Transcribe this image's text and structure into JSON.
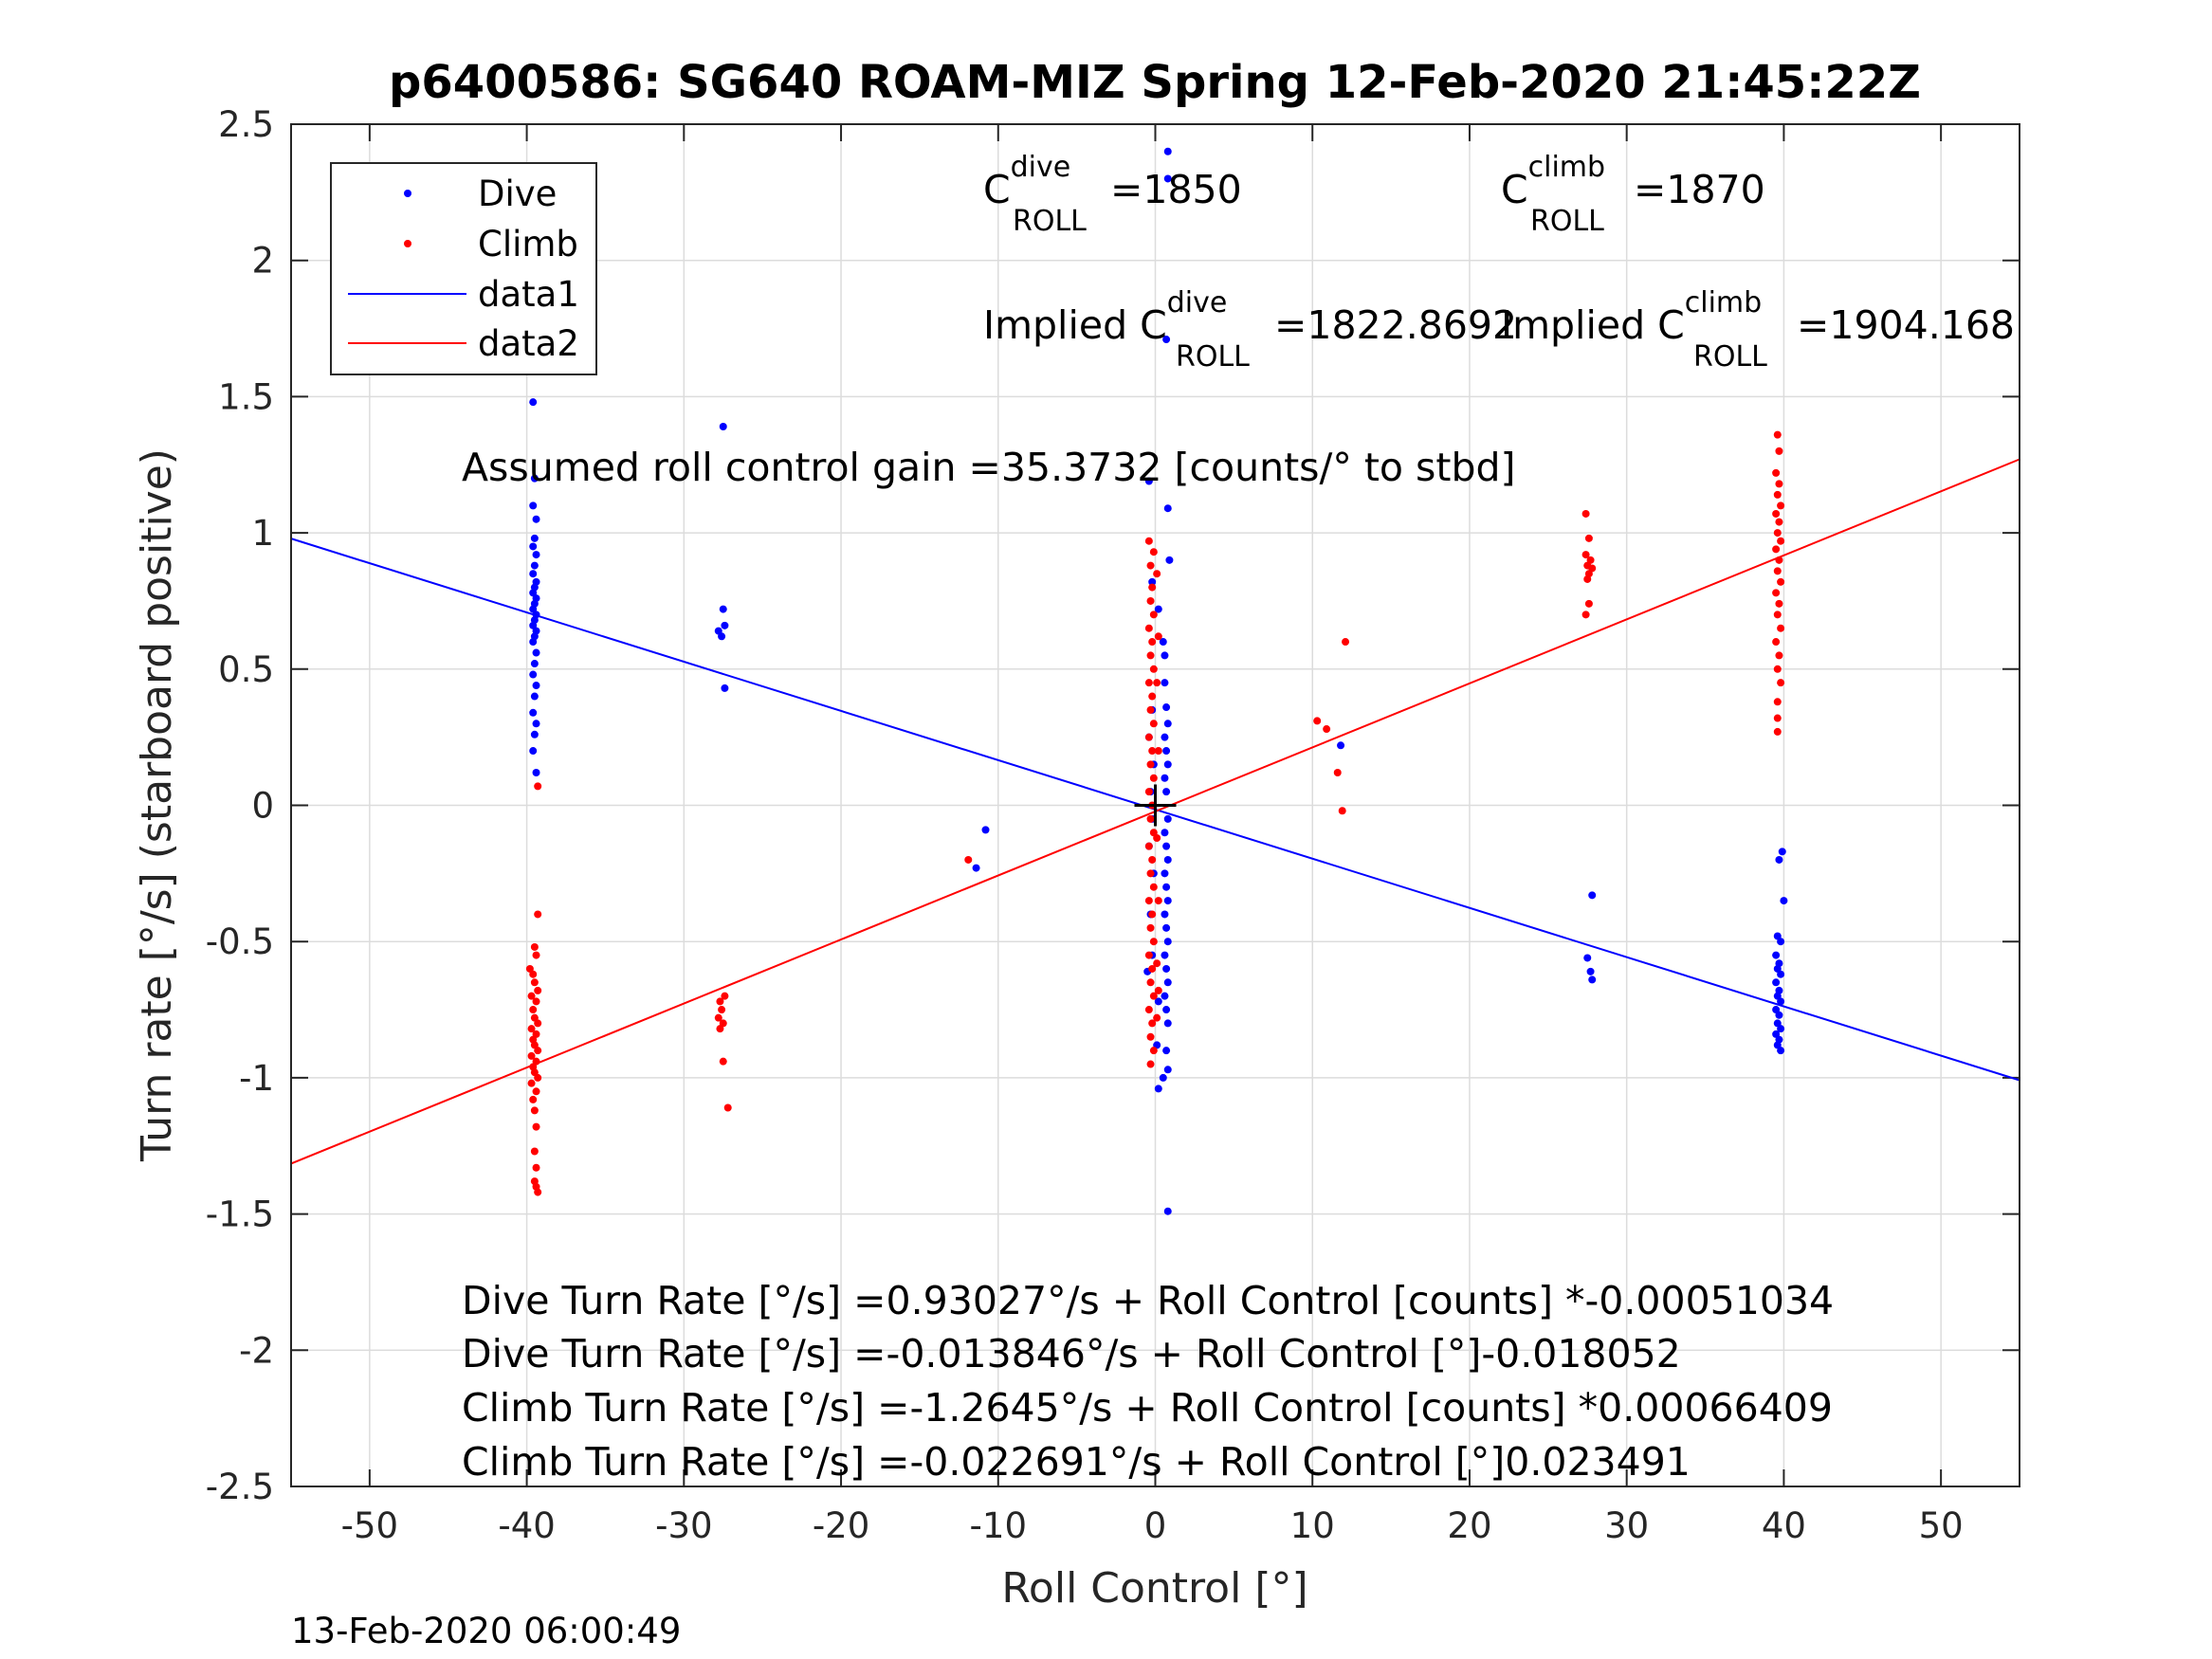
{
  "chart_data": {
    "type": "scatter",
    "title": "p6400586: SG640 ROAM-MIZ Spring 12-Feb-2020 21:45:22Z",
    "xlabel": "Roll Control [°]",
    "ylabel": "Turn rate [°/s] (starboard positive)",
    "xlim": [
      -55,
      55
    ],
    "ylim": [
      -2.5,
      2.5
    ],
    "xticks": [
      -50,
      -40,
      -30,
      -20,
      -10,
      0,
      10,
      20,
      30,
      40,
      50
    ],
    "xtick_labels": [
      "-50",
      "-40",
      "-30",
      "-20",
      "-10",
      "0",
      "10",
      "20",
      "30",
      "40",
      "50"
    ],
    "yticks": [
      -2.5,
      -2,
      -1.5,
      -1,
      -0.5,
      0,
      0.5,
      1,
      1.5,
      2,
      2.5
    ],
    "ytick_labels": [
      "-2.5",
      "-2",
      "-1.5",
      "-1",
      "-0.5",
      "0",
      "0.5",
      "1",
      "1.5",
      "2",
      "2.5"
    ],
    "grid": true,
    "legend_placement": "top-left",
    "legend": [
      {
        "name": "Dive",
        "style": "dot",
        "color": "#0000ff"
      },
      {
        "name": "Climb",
        "style": "dot",
        "color": "#ff0000"
      },
      {
        "name": "data1",
        "style": "line",
        "color": "#0000ff"
      },
      {
        "name": "data2",
        "style": "line",
        "color": "#ff0000"
      }
    ],
    "series": [
      {
        "name": "Dive",
        "kind": "scatter",
        "color": "#0000ff",
        "points": [
          [
            -39.6,
            1.48
          ],
          [
            -39.5,
            1.2
          ],
          [
            -39.6,
            1.1
          ],
          [
            -39.4,
            1.05
          ],
          [
            -39.5,
            0.98
          ],
          [
            -39.6,
            0.95
          ],
          [
            -39.4,
            0.92
          ],
          [
            -39.5,
            0.88
          ],
          [
            -39.6,
            0.85
          ],
          [
            -39.4,
            0.82
          ],
          [
            -39.5,
            0.8
          ],
          [
            -39.6,
            0.78
          ],
          [
            -39.4,
            0.76
          ],
          [
            -39.5,
            0.74
          ],
          [
            -39.6,
            0.72
          ],
          [
            -39.4,
            0.7
          ],
          [
            -39.5,
            0.68
          ],
          [
            -39.6,
            0.66
          ],
          [
            -39.4,
            0.64
          ],
          [
            -39.5,
            0.62
          ],
          [
            -39.6,
            0.6
          ],
          [
            -39.4,
            0.56
          ],
          [
            -39.5,
            0.52
          ],
          [
            -39.6,
            0.48
          ],
          [
            -39.4,
            0.44
          ],
          [
            -39.5,
            0.4
          ],
          [
            -39.6,
            0.34
          ],
          [
            -39.4,
            0.3
          ],
          [
            -39.5,
            0.26
          ],
          [
            -39.6,
            0.2
          ],
          [
            -39.4,
            0.12
          ],
          [
            -27.8,
            0.64
          ],
          [
            -27.6,
            0.62
          ],
          [
            -27.4,
            0.66
          ],
          [
            -27.5,
            0.72
          ],
          [
            -27.5,
            1.39
          ],
          [
            -27.4,
            0.43
          ],
          [
            -10.8,
            -0.09
          ],
          [
            -11.4,
            -0.23
          ],
          [
            -0.4,
            1.19
          ],
          [
            -0.2,
            0.82
          ],
          [
            0.2,
            0.72
          ],
          [
            0.5,
            0.6
          ],
          [
            0.6,
            0.55
          ],
          [
            0.8,
            1.09
          ],
          [
            0.9,
            0.9
          ],
          [
            0.8,
            2.3
          ],
          [
            0.8,
            2.4
          ],
          [
            0.7,
            1.71
          ],
          [
            0.6,
            0.45
          ],
          [
            0.7,
            0.36
          ],
          [
            0.8,
            0.3
          ],
          [
            0.6,
            0.25
          ],
          [
            0.7,
            0.2
          ],
          [
            0.8,
            0.15
          ],
          [
            0.6,
            0.1
          ],
          [
            0.7,
            0.05
          ],
          [
            0.8,
            -0.05
          ],
          [
            0.6,
            -0.1
          ],
          [
            0.7,
            -0.15
          ],
          [
            0.8,
            -0.2
          ],
          [
            0.6,
            -0.25
          ],
          [
            0.7,
            -0.3
          ],
          [
            0.8,
            -0.35
          ],
          [
            0.6,
            -0.4
          ],
          [
            0.7,
            -0.45
          ],
          [
            0.8,
            -0.5
          ],
          [
            0.6,
            -0.55
          ],
          [
            0.7,
            -0.6
          ],
          [
            0.8,
            -0.65
          ],
          [
            0.6,
            -0.7
          ],
          [
            0.7,
            -0.75
          ],
          [
            0.8,
            -0.8
          ],
          [
            0.7,
            -0.9
          ],
          [
            0.8,
            -0.97
          ],
          [
            0.5,
            -1.0
          ],
          [
            0.2,
            -1.04
          ],
          [
            -0.5,
            -0.61
          ],
          [
            -0.2,
            -0.55
          ],
          [
            -0.3,
            -0.4
          ],
          [
            -0.1,
            -0.25
          ],
          [
            -0.4,
            -0.15
          ],
          [
            -0.2,
            -0.05
          ],
          [
            -0.3,
            0.05
          ],
          [
            -0.1,
            0.15
          ],
          [
            -0.4,
            0.25
          ],
          [
            -0.2,
            0.35
          ],
          [
            0.2,
            -0.72
          ],
          [
            0.1,
            -0.88
          ],
          [
            0.8,
            -1.49
          ],
          [
            11.8,
            0.22
          ],
          [
            27.8,
            -0.33
          ],
          [
            27.5,
            -0.56
          ],
          [
            27.7,
            -0.61
          ],
          [
            27.8,
            -0.64
          ],
          [
            39.9,
            -0.17
          ],
          [
            39.7,
            -0.2
          ],
          [
            40.0,
            -0.35
          ],
          [
            39.6,
            -0.48
          ],
          [
            39.8,
            -0.5
          ],
          [
            39.5,
            -0.55
          ],
          [
            39.7,
            -0.58
          ],
          [
            39.6,
            -0.6
          ],
          [
            39.8,
            -0.62
          ],
          [
            39.5,
            -0.65
          ],
          [
            39.7,
            -0.68
          ],
          [
            39.6,
            -0.7
          ],
          [
            39.8,
            -0.72
          ],
          [
            39.5,
            -0.75
          ],
          [
            39.7,
            -0.77
          ],
          [
            39.6,
            -0.8
          ],
          [
            39.8,
            -0.82
          ],
          [
            39.5,
            -0.84
          ],
          [
            39.7,
            -0.86
          ],
          [
            39.6,
            -0.88
          ],
          [
            39.8,
            -0.9
          ]
        ]
      },
      {
        "name": "Climb",
        "kind": "scatter",
        "color": "#ff0000",
        "points": [
          [
            -39.3,
            0.07
          ],
          [
            -39.3,
            -0.4
          ],
          [
            -39.5,
            -0.52
          ],
          [
            -39.4,
            -0.55
          ],
          [
            -39.8,
            -0.6
          ],
          [
            -39.6,
            -0.62
          ],
          [
            -39.5,
            -0.65
          ],
          [
            -39.3,
            -0.68
          ],
          [
            -39.7,
            -0.7
          ],
          [
            -39.4,
            -0.72
          ],
          [
            -39.6,
            -0.75
          ],
          [
            -39.5,
            -0.78
          ],
          [
            -39.3,
            -0.8
          ],
          [
            -39.7,
            -0.82
          ],
          [
            -39.4,
            -0.84
          ],
          [
            -39.6,
            -0.86
          ],
          [
            -39.5,
            -0.88
          ],
          [
            -39.3,
            -0.9
          ],
          [
            -39.7,
            -0.92
          ],
          [
            -39.4,
            -0.94
          ],
          [
            -39.6,
            -0.96
          ],
          [
            -39.5,
            -0.98
          ],
          [
            -39.3,
            -1.0
          ],
          [
            -39.7,
            -1.02
          ],
          [
            -39.4,
            -1.05
          ],
          [
            -39.6,
            -1.08
          ],
          [
            -39.5,
            -1.12
          ],
          [
            -39.4,
            -1.18
          ],
          [
            -39.5,
            -1.27
          ],
          [
            -39.4,
            -1.33
          ],
          [
            -39.5,
            -1.38
          ],
          [
            -39.4,
            -1.4
          ],
          [
            -39.3,
            -1.42
          ],
          [
            -27.7,
            -0.72
          ],
          [
            -27.6,
            -0.75
          ],
          [
            -27.8,
            -0.78
          ],
          [
            -27.5,
            -0.8
          ],
          [
            -27.7,
            -0.82
          ],
          [
            -27.4,
            -0.7
          ],
          [
            -27.5,
            -0.94
          ],
          [
            -27.2,
            -1.11
          ],
          [
            -11.9,
            -0.2
          ],
          [
            -0.4,
            0.97
          ],
          [
            -0.1,
            0.93
          ],
          [
            -0.3,
            0.88
          ],
          [
            -0.2,
            0.8
          ],
          [
            -0.3,
            0.75
          ],
          [
            -0.1,
            0.7
          ],
          [
            -0.4,
            0.65
          ],
          [
            -0.2,
            0.6
          ],
          [
            -0.3,
            0.55
          ],
          [
            -0.1,
            0.5
          ],
          [
            -0.4,
            0.45
          ],
          [
            -0.2,
            0.4
          ],
          [
            -0.3,
            0.35
          ],
          [
            -0.1,
            0.3
          ],
          [
            -0.4,
            0.25
          ],
          [
            -0.2,
            0.2
          ],
          [
            -0.3,
            0.15
          ],
          [
            -0.1,
            0.1
          ],
          [
            -0.4,
            0.05
          ],
          [
            -0.2,
            0.0
          ],
          [
            -0.3,
            -0.05
          ],
          [
            -0.1,
            -0.1
          ],
          [
            -0.4,
            -0.15
          ],
          [
            -0.2,
            -0.2
          ],
          [
            -0.3,
            -0.25
          ],
          [
            -0.1,
            -0.3
          ],
          [
            -0.4,
            -0.35
          ],
          [
            -0.2,
            -0.4
          ],
          [
            -0.3,
            -0.45
          ],
          [
            -0.1,
            -0.5
          ],
          [
            -0.4,
            -0.55
          ],
          [
            -0.2,
            -0.6
          ],
          [
            -0.3,
            -0.65
          ],
          [
            -0.1,
            -0.7
          ],
          [
            -0.4,
            -0.75
          ],
          [
            -0.2,
            -0.8
          ],
          [
            -0.3,
            -0.85
          ],
          [
            -0.1,
            -0.9
          ],
          [
            -0.3,
            -0.95
          ],
          [
            0.1,
            0.85
          ],
          [
            0.2,
            0.62
          ],
          [
            0.1,
            0.45
          ],
          [
            0.2,
            0.2
          ],
          [
            0.1,
            -0.12
          ],
          [
            0.2,
            -0.35
          ],
          [
            0.1,
            -0.58
          ],
          [
            0.2,
            -0.68
          ],
          [
            0.1,
            -0.78
          ],
          [
            10.3,
            0.31
          ],
          [
            10.9,
            0.28
          ],
          [
            11.6,
            0.12
          ],
          [
            12.1,
            0.6
          ],
          [
            11.9,
            -0.02
          ],
          [
            27.4,
            1.07
          ],
          [
            27.6,
            0.98
          ],
          [
            27.4,
            0.92
          ],
          [
            27.7,
            0.9
          ],
          [
            27.5,
            0.88
          ],
          [
            27.8,
            0.87
          ],
          [
            27.6,
            0.85
          ],
          [
            27.5,
            0.83
          ],
          [
            27.6,
            0.74
          ],
          [
            27.4,
            0.7
          ],
          [
            39.6,
            1.36
          ],
          [
            39.7,
            1.3
          ],
          [
            39.5,
            1.22
          ],
          [
            39.7,
            1.18
          ],
          [
            39.6,
            1.14
          ],
          [
            39.8,
            1.1
          ],
          [
            39.5,
            1.07
          ],
          [
            39.7,
            1.04
          ],
          [
            39.6,
            1.0
          ],
          [
            39.8,
            0.97
          ],
          [
            39.5,
            0.94
          ],
          [
            39.7,
            0.9
          ],
          [
            39.6,
            0.86
          ],
          [
            39.8,
            0.82
          ],
          [
            39.5,
            0.78
          ],
          [
            39.7,
            0.74
          ],
          [
            39.6,
            0.7
          ],
          [
            39.8,
            0.65
          ],
          [
            39.5,
            0.6
          ],
          [
            39.7,
            0.55
          ],
          [
            39.6,
            0.5
          ],
          [
            39.8,
            0.45
          ],
          [
            39.6,
            0.38
          ],
          [
            39.6,
            0.32
          ],
          [
            39.6,
            0.27
          ]
        ]
      },
      {
        "name": "data1",
        "kind": "line",
        "color": "#0000ff",
        "x": [
          -55,
          55
        ],
        "y": [
          0.979,
          -1.009
        ]
      },
      {
        "name": "data2",
        "kind": "line",
        "color": "#ff0000",
        "x": [
          -55,
          55
        ],
        "y": [
          -1.315,
          1.27
        ]
      }
    ],
    "annotations": [
      {
        "id": "c-dive",
        "prefix": "C",
        "sup": "dive",
        "sub": "ROLL",
        "value": " =1850"
      },
      {
        "id": "c-climb",
        "prefix": "C",
        "sup": "climb",
        "sub": "ROLL",
        "value": " =1870"
      },
      {
        "id": "implied-dive",
        "prefix": "Implied C",
        "sup": "dive",
        "sub": "ROLL",
        "value": " =1822.8692"
      },
      {
        "id": "implied-climb",
        "prefix": "Implied C",
        "sup": "climb",
        "sub": "ROLL",
        "value": " =1904.168"
      },
      {
        "id": "gain",
        "text": "Assumed roll control gain =35.3732 [counts/° to stbd]"
      },
      {
        "id": "eq1",
        "text": "Dive Turn Rate [°/s] =0.93027°/s + Roll Control [counts] *-0.00051034"
      },
      {
        "id": "eq2",
        "text": "Dive Turn Rate [°/s] =-0.013846°/s + Roll Control [°]-0.018052"
      },
      {
        "id": "eq3",
        "text": "Climb Turn Rate [°/s] =-1.2645°/s + Roll Control [counts] *0.00066409"
      },
      {
        "id": "eq4",
        "text": "Climb Turn Rate [°/s] =-0.022691°/s + Roll Control [°]0.023491"
      }
    ],
    "footer": "13-Feb-2020 06:00:49"
  }
}
